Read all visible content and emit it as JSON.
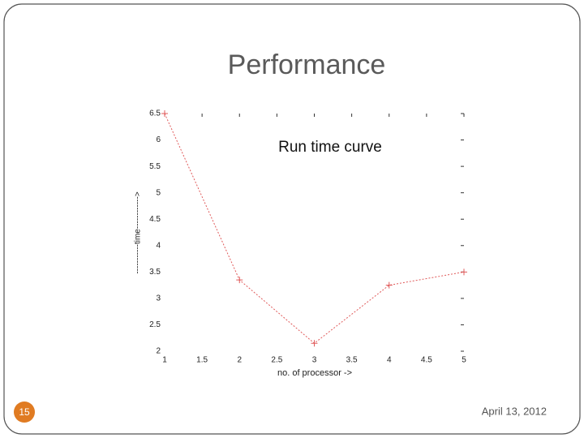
{
  "slide": {
    "title": "Performance",
    "page_number": "15",
    "date": "April 13, 2012"
  },
  "chart_data": {
    "type": "line",
    "title": "Run time curve",
    "x_label": "no. of processor ->",
    "y_label": "-----------time------------>",
    "x": [
      1,
      2,
      3,
      4,
      5
    ],
    "values": [
      6.5,
      3.35,
      2.15,
      3.25,
      3.5
    ],
    "color": "#e05a5a",
    "xlim": [
      1,
      5
    ],
    "xticks": [
      1,
      1.5,
      2,
      2.5,
      3,
      3.5,
      4,
      4.5,
      5
    ],
    "ylim": [
      2,
      6.5
    ],
    "yticks": [
      2,
      2.5,
      3,
      3.5,
      4,
      4.5,
      5,
      5.5,
      6,
      6.5
    ]
  }
}
